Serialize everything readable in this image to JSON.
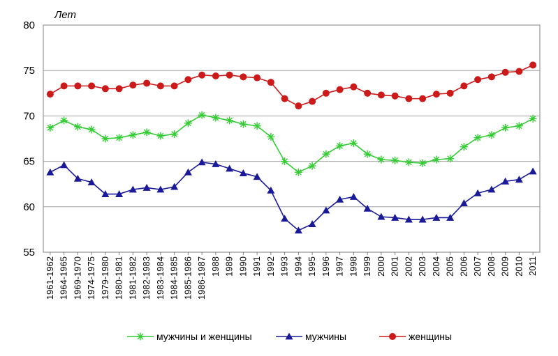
{
  "chart_data": {
    "type": "line",
    "title": "",
    "ylabel": "Лет",
    "xlabel": "",
    "ylim": [
      55,
      80
    ],
    "yticks": [
      55,
      60,
      65,
      70,
      75,
      80
    ],
    "grid": "horizontal",
    "legend_position": "bottom",
    "categories": [
      "1961-1962",
      "1964-1965",
      "1969-1970",
      "1974-1975",
      "1979-1980",
      "1980-1981",
      "1981-1982",
      "1982-1983",
      "1983-1984",
      "1984-1985",
      "1985-1986",
      "1986-1987",
      "1988",
      "1989",
      "1990",
      "1991",
      "1992",
      "1993",
      "1994",
      "1995",
      "1996",
      "1997",
      "1998",
      "1999",
      "2000",
      "2001",
      "2002",
      "2003",
      "2004",
      "2005",
      "2006",
      "2007",
      "2008",
      "2009",
      "2010",
      "2011"
    ],
    "series": [
      {
        "name": "мужчины и женщины",
        "color": "#33cc33",
        "marker": "asterisk",
        "values": [
          68.7,
          69.5,
          68.8,
          68.5,
          67.5,
          67.6,
          67.9,
          68.2,
          67.8,
          68.0,
          69.2,
          70.1,
          69.8,
          69.5,
          69.1,
          68.9,
          67.7,
          65.0,
          63.8,
          64.5,
          65.8,
          66.7,
          67.0,
          65.8,
          65.2,
          65.1,
          64.9,
          64.8,
          65.2,
          65.3,
          66.6,
          67.6,
          67.9,
          68.7,
          68.9,
          69.7
        ]
      },
      {
        "name": "мужчины",
        "color": "#1a1a99",
        "marker": "triangle",
        "values": [
          63.8,
          64.6,
          63.1,
          62.7,
          61.4,
          61.4,
          61.9,
          62.1,
          61.9,
          62.2,
          63.8,
          64.9,
          64.7,
          64.2,
          63.7,
          63.3,
          61.8,
          58.7,
          57.4,
          58.1,
          59.6,
          60.8,
          61.1,
          59.8,
          58.9,
          58.8,
          58.6,
          58.6,
          58.8,
          58.8,
          60.4,
          61.5,
          61.9,
          62.8,
          63.0,
          63.9
        ]
      },
      {
        "name": "женщины",
        "color": "#cc1a1a",
        "marker": "circle",
        "values": [
          72.4,
          73.3,
          73.3,
          73.3,
          73.0,
          73.0,
          73.4,
          73.6,
          73.3,
          73.3,
          74.0,
          74.5,
          74.4,
          74.5,
          74.3,
          74.2,
          73.7,
          71.9,
          71.1,
          71.6,
          72.5,
          72.9,
          73.2,
          72.5,
          72.3,
          72.2,
          71.9,
          71.9,
          72.4,
          72.5,
          73.3,
          74.0,
          74.3,
          74.8,
          74.9,
          75.6
        ]
      }
    ]
  }
}
